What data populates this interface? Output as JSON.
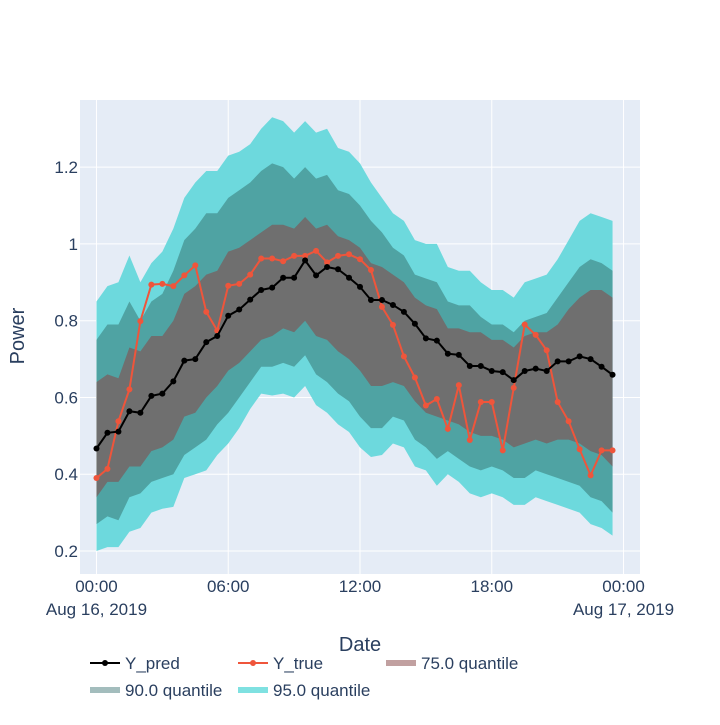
{
  "chart_data": {
    "type": "line",
    "title": "",
    "xlabel": "Date",
    "ylabel": "Power",
    "ylim": [
      0.14,
      1.375
    ],
    "xlim_hours": [
      -0.75,
      24.75
    ],
    "x_start": "2019-08-16 00:00",
    "x_step_minutes": 30,
    "x_ticks": [
      {
        "hour": 0,
        "label": "00:00",
        "sublabel": "Aug 16, 2019"
      },
      {
        "hour": 6,
        "label": "06:00",
        "sublabel": ""
      },
      {
        "hour": 12,
        "label": "12:00",
        "sublabel": ""
      },
      {
        "hour": 18,
        "label": "18:00",
        "sublabel": ""
      },
      {
        "hour": 24,
        "label": "00:00",
        "sublabel": "Aug 17, 2019"
      }
    ],
    "y_ticks": [
      0.2,
      0.4,
      0.6,
      0.8,
      1,
      1.2
    ],
    "y_tick_labels": [
      "0.2",
      "0.4",
      "0.6",
      "0.8",
      "1",
      "1.2"
    ],
    "grid": true,
    "legend_position": "bottom",
    "colors": {
      "plot_bg": "#e5ecf6",
      "grid": "#ffffff",
      "y_pred": "#000000",
      "y_true": "#ef553b",
      "q75": "#6f6f6f",
      "q90": "#4fa3a3",
      "q95": "#6dd9dd",
      "legend_q75": "#c1a0a0",
      "legend_q90": "#a3bdbd",
      "legend_q95": "#7fe1e1"
    },
    "legend": [
      {
        "key": "y_pred",
        "label": "Y_pred"
      },
      {
        "key": "y_true",
        "label": "Y_true"
      },
      {
        "key": "q75",
        "label": "75.0 quantile"
      },
      {
        "key": "q90",
        "label": "90.0 quantile"
      },
      {
        "key": "q95",
        "label": "95.0 quantile"
      }
    ],
    "series": [
      {
        "name": "Y_pred",
        "values": [
          0.467,
          0.508,
          0.511,
          0.564,
          0.56,
          0.604,
          0.61,
          0.642,
          0.696,
          0.7,
          0.744,
          0.76,
          0.813,
          0.829,
          0.855,
          0.88,
          0.886,
          0.912,
          0.912,
          0.957,
          0.918,
          0.94,
          0.934,
          0.912,
          0.888,
          0.854,
          0.854,
          0.841,
          0.823,
          0.792,
          0.754,
          0.748,
          0.714,
          0.711,
          0.682,
          0.682,
          0.669,
          0.666,
          0.645,
          0.669,
          0.675,
          0.669,
          0.694,
          0.694,
          0.707,
          0.7,
          0.68,
          0.659
        ]
      },
      {
        "name": "Y_true",
        "values": [
          0.39,
          0.414,
          0.538,
          0.621,
          0.799,
          0.894,
          0.896,
          0.89,
          0.918,
          0.944,
          0.823,
          0.774,
          0.891,
          0.896,
          0.92,
          0.962,
          0.962,
          0.955,
          0.969,
          0.969,
          0.982,
          0.952,
          0.969,
          0.973,
          0.96,
          0.932,
          0.836,
          0.789,
          0.707,
          0.652,
          0.579,
          0.596,
          0.518,
          0.632,
          0.489,
          0.588,
          0.588,
          0.462,
          0.625,
          0.79,
          0.763,
          0.723,
          0.588,
          0.538,
          0.465,
          0.397,
          0.462,
          0.462
        ]
      }
    ],
    "bands": [
      {
        "name": "95.0 quantile",
        "lower": [
          0.2,
          0.21,
          0.21,
          0.25,
          0.26,
          0.3,
          0.31,
          0.315,
          0.39,
          0.4,
          0.41,
          0.45,
          0.48,
          0.52,
          0.57,
          0.61,
          0.605,
          0.61,
          0.6,
          0.63,
          0.58,
          0.56,
          0.53,
          0.51,
          0.47,
          0.445,
          0.45,
          0.48,
          0.47,
          0.42,
          0.41,
          0.37,
          0.4,
          0.38,
          0.35,
          0.34,
          0.35,
          0.34,
          0.32,
          0.32,
          0.34,
          0.33,
          0.32,
          0.31,
          0.3,
          0.27,
          0.26,
          0.24
        ],
        "upper": [
          0.85,
          0.89,
          0.9,
          0.97,
          0.9,
          0.95,
          0.98,
          1.04,
          1.12,
          1.16,
          1.19,
          1.19,
          1.23,
          1.24,
          1.26,
          1.3,
          1.33,
          1.32,
          1.29,
          1.32,
          1.29,
          1.3,
          1.25,
          1.24,
          1.21,
          1.16,
          1.12,
          1.08,
          1.06,
          1.01,
          1.0,
          1.0,
          0.94,
          0.93,
          0.93,
          0.9,
          0.88,
          0.88,
          0.86,
          0.9,
          0.91,
          0.92,
          0.96,
          1.01,
          1.06,
          1.08,
          1.07,
          1.06
        ]
      },
      {
        "name": "90.0 quantile",
        "lower": [
          0.27,
          0.29,
          0.28,
          0.34,
          0.35,
          0.38,
          0.39,
          0.4,
          0.45,
          0.47,
          0.49,
          0.53,
          0.56,
          0.6,
          0.64,
          0.68,
          0.68,
          0.69,
          0.68,
          0.71,
          0.66,
          0.64,
          0.61,
          0.59,
          0.55,
          0.52,
          0.52,
          0.55,
          0.54,
          0.49,
          0.47,
          0.44,
          0.46,
          0.44,
          0.42,
          0.41,
          0.42,
          0.41,
          0.39,
          0.39,
          0.41,
          0.4,
          0.39,
          0.38,
          0.37,
          0.34,
          0.33,
          0.3
        ],
        "upper": [
          0.75,
          0.79,
          0.79,
          0.85,
          0.8,
          0.85,
          0.87,
          0.93,
          1.01,
          1.04,
          1.08,
          1.08,
          1.12,
          1.14,
          1.16,
          1.19,
          1.21,
          1.2,
          1.17,
          1.2,
          1.17,
          1.18,
          1.14,
          1.13,
          1.1,
          1.06,
          1.03,
          0.99,
          0.97,
          0.92,
          0.91,
          0.9,
          0.85,
          0.84,
          0.84,
          0.81,
          0.79,
          0.79,
          0.77,
          0.8,
          0.81,
          0.82,
          0.86,
          0.9,
          0.94,
          0.96,
          0.95,
          0.93
        ]
      },
      {
        "name": "75.0 quantile",
        "lower": [
          0.34,
          0.38,
          0.38,
          0.42,
          0.42,
          0.46,
          0.47,
          0.49,
          0.55,
          0.56,
          0.6,
          0.63,
          0.67,
          0.69,
          0.72,
          0.75,
          0.76,
          0.78,
          0.77,
          0.8,
          0.76,
          0.75,
          0.72,
          0.7,
          0.67,
          0.63,
          0.63,
          0.64,
          0.63,
          0.59,
          0.56,
          0.55,
          0.54,
          0.53,
          0.51,
          0.5,
          0.5,
          0.49,
          0.47,
          0.48,
          0.49,
          0.48,
          0.49,
          0.49,
          0.48,
          0.46,
          0.45,
          0.42
        ],
        "upper": [
          0.64,
          0.66,
          0.65,
          0.73,
          0.72,
          0.76,
          0.76,
          0.8,
          0.87,
          0.89,
          0.92,
          0.93,
          0.98,
          0.99,
          1.01,
          1.03,
          1.05,
          1.05,
          1.04,
          1.07,
          1.04,
          1.05,
          1.02,
          1.01,
          0.99,
          0.95,
          0.94,
          0.92,
          0.9,
          0.86,
          0.84,
          0.83,
          0.78,
          0.78,
          0.77,
          0.77,
          0.75,
          0.75,
          0.73,
          0.76,
          0.77,
          0.77,
          0.79,
          0.83,
          0.86,
          0.88,
          0.88,
          0.86
        ]
      }
    ]
  }
}
